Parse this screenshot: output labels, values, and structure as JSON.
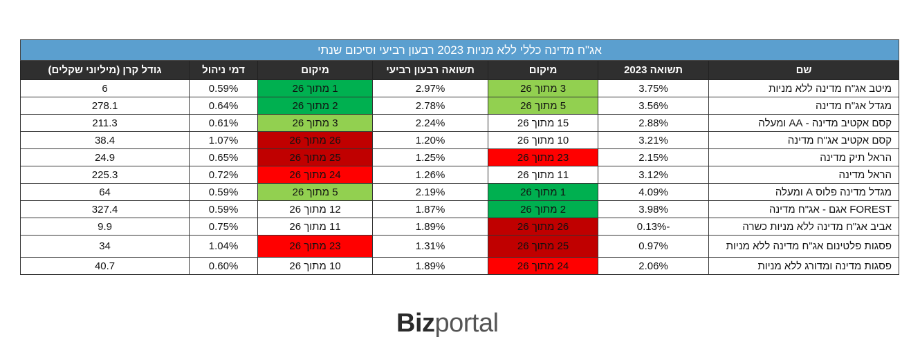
{
  "table": {
    "title": "אג\"ח מדינה כללי ללא מניות 2023 רבעון רביעי וסיכום שנתי",
    "headers": [
      "שם",
      "תשואה 2023",
      "מיקום",
      "תשואה רבעון רביעי",
      "מיקום",
      "דמי ניהול",
      "גודל קרן (מיליוני שקלים)"
    ],
    "rows": [
      {
        "name": "מיטב אג\"ח מדינה ללא מניות",
        "ret2023": "3.75%",
        "rank_year": "3 מתוך 26",
        "ret_q4": "2.97%",
        "rank_q4": "1 מתוך 26",
        "fee": "0.59%",
        "size": "6"
      },
      {
        "name": "מגדל אג\"ח מדינה",
        "ret2023": "3.56%",
        "rank_year": "5 מתוך 26",
        "ret_q4": "2.78%",
        "rank_q4": "2 מתוך 26",
        "fee": "0.64%",
        "size": "278.1"
      },
      {
        "name": "קסם אקטיב מדינה - AA ומעלה",
        "ret2023": "2.88%",
        "rank_year": "15 מתוך 26",
        "ret_q4": "2.24%",
        "rank_q4": "3 מתוך 26",
        "fee": "0.61%",
        "size": "211.3"
      },
      {
        "name": "קסם אקטיב אג\"ח מדינה",
        "ret2023": "3.21%",
        "rank_year": "10 מתוך 26",
        "ret_q4": "1.20%",
        "rank_q4": "26 מתוך 26",
        "fee": "1.07%",
        "size": "38.4"
      },
      {
        "name": "הראל תיק מדינה",
        "ret2023": "2.15%",
        "rank_year": "23 מתוך 26",
        "ret_q4": "1.25%",
        "rank_q4": "25 מתוך 26",
        "fee": "0.65%",
        "size": "24.9"
      },
      {
        "name": "הראל מדינה",
        "ret2023": "3.12%",
        "rank_year": "11 מתוך 26",
        "ret_q4": "1.26%",
        "rank_q4": "24 מתוך 26",
        "fee": "0.72%",
        "size": "225.3"
      },
      {
        "name": "מגדל מדינה פלוס A ומעלה",
        "ret2023": "4.09%",
        "rank_year": "1 מתוך 26",
        "ret_q4": "2.19%",
        "rank_q4": "5 מתוך 26",
        "fee": "0.59%",
        "size": "64"
      },
      {
        "name": "FOREST אגם - אג\"ח מדינה",
        "ret2023": "3.98%",
        "rank_year": "2 מתוך 26",
        "ret_q4": "1.87%",
        "rank_q4": "12 מתוך 26",
        "fee": "0.59%",
        "size": "327.4"
      },
      {
        "name": "אביב אג\"ח מדינה ללא מניות כשרה",
        "ret2023": "-0.13%",
        "rank_year": "26 מתוך 26",
        "ret_q4": "1.89%",
        "rank_q4": "11 מתוך 26",
        "fee": "0.75%",
        "size": "9.9"
      },
      {
        "name": "פסגות פלטינום אג\"ח מדינה ללא מניות",
        "ret2023": "0.97%",
        "rank_year": "25 מתוך 26",
        "ret_q4": "1.31%",
        "rank_q4": "23 מתוך 26",
        "fee": "1.04%",
        "size": "34"
      },
      {
        "name": "פסגות מדינה ומדורג ללא מניות",
        "ret2023": "2.06%",
        "rank_year": "24 מתוך 26",
        "ret_q4": "1.89%",
        "rank_q4": "10 מתוך 26",
        "fee": "0.60%",
        "size": "40.7"
      }
    ]
  },
  "rank_colors": {
    "1": "#00b050",
    "2": "#00b050",
    "3": "#92d050",
    "5": "#92d050",
    "23": "#ff0000",
    "24": "#ff0000",
    "25": "#c00000",
    "26": "#c00000"
  },
  "logo": {
    "bold": "Biz",
    "light": "portal"
  }
}
